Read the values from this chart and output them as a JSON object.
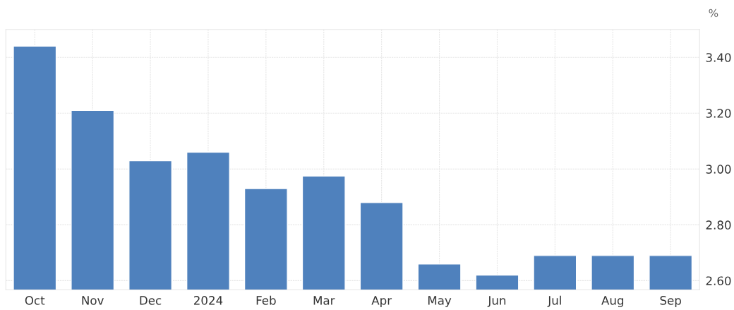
{
  "chart_data": {
    "type": "bar",
    "ylabel": "%",
    "categories": [
      "Oct",
      "Nov",
      "Dec",
      "2024",
      "Feb",
      "Mar",
      "Apr",
      "May",
      "Jun",
      "Jul",
      "Aug",
      "Sep"
    ],
    "series": [
      {
        "color": "#4f81bd",
        "values": [
          3.44,
          3.21,
          3.03,
          3.06,
          2.93,
          2.975,
          2.88,
          2.66,
          2.62,
          2.69,
          2.69,
          2.69
        ]
      }
    ],
    "ylim": [
      2.567,
      3.5
    ],
    "yticks": [
      {
        "value": 2.6,
        "label": "2.60"
      },
      {
        "value": 2.8,
        "label": "2.80"
      },
      {
        "value": 3.0,
        "label": "3.00"
      },
      {
        "value": 3.2,
        "label": "3.20"
      },
      {
        "value": 3.4,
        "label": "3.40"
      }
    ],
    "grid": true
  }
}
